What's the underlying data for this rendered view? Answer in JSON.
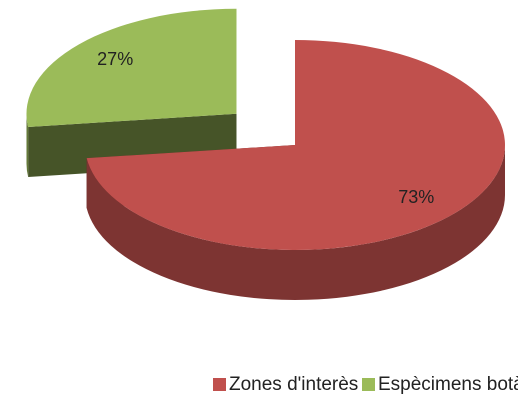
{
  "chart_data": {
    "type": "pie",
    "categories": [
      "Zones d'interès",
      "Espècimens botànics"
    ],
    "values": [
      73,
      27
    ],
    "value_labels": [
      "73%",
      "27%"
    ],
    "colors": [
      "#c0504d",
      "#9bbb59"
    ],
    "legend": "bottom"
  }
}
